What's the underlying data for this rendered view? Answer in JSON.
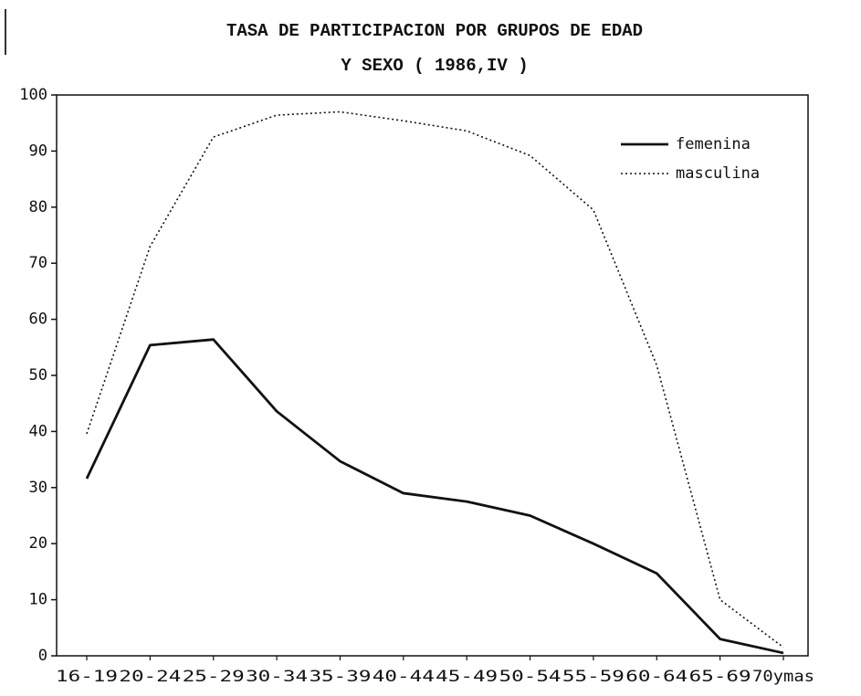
{
  "chart_data": {
    "type": "line",
    "title": "TASA DE PARTICIPACION POR GRUPOS DE EDAD",
    "subtitle": "Y SEXO ( 1986,IV )",
    "categories": [
      "16-19",
      "20-24",
      "25-29",
      "30-34",
      "35-39",
      "40-44",
      "45-49",
      "50-54",
      "55-59",
      "60-64",
      "65-69",
      "70ymas"
    ],
    "series": [
      {
        "name": "femenina",
        "color": "#111111",
        "style": "solid",
        "values": [
          31.6,
          55.4,
          56.4,
          43.6,
          34.7,
          29,
          27.5,
          25,
          20,
          14.7,
          3,
          0.5
        ]
      },
      {
        "name": "masculina",
        "color": "#111111",
        "style": "dotted",
        "values": [
          39.6,
          73,
          92.5,
          96.4,
          97,
          95.4,
          93.6,
          89.2,
          79.5,
          51.8,
          10,
          1.5
        ]
      }
    ],
    "ylim": [
      0,
      100
    ],
    "yticks": [
      0,
      10,
      20,
      30,
      40,
      50,
      60,
      70,
      80,
      90,
      100
    ],
    "legend": "top-right"
  }
}
